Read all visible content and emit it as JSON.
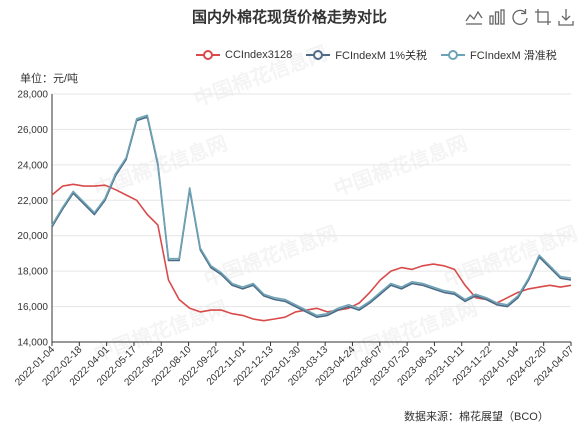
{
  "title": "国内外棉花现货价格走势对比",
  "unit_label": "单位：元/吨",
  "source_text": "数据来源：棉花展望（BCO）",
  "watermark_text": "中国棉花信息网",
  "toolbox": [
    {
      "name": "line-chart-icon"
    },
    {
      "name": "bar-chart-icon"
    },
    {
      "name": "refresh-icon"
    },
    {
      "name": "crop-icon"
    },
    {
      "name": "download-icon"
    }
  ],
  "colors": {
    "cc": "#d94b4b",
    "fc1": "#4b6a86",
    "fc2": "#6ea3b5"
  },
  "chart_data": {
    "type": "line",
    "ylim": [
      14000,
      28000
    ],
    "y_ticks": [
      "14,000",
      "16,000",
      "18,000",
      "20,000",
      "22,000",
      "24,000",
      "26,000",
      "28,000"
    ],
    "x_ticks": [
      "2022-01-04",
      "2022-02-18",
      "2022-04-01",
      "2022-05-17",
      "2022-06-29",
      "2022-08-10",
      "2022-09-22",
      "2022-11-01",
      "2022-12-13",
      "2023-01-30",
      "2023-03-13",
      "2023-04-24",
      "2023-06-07",
      "2023-07-20",
      "2023-08-31",
      "2023-10-11",
      "2023-11-22",
      "2024-01-04",
      "2024-02-20",
      "2024-04-07"
    ],
    "grid": true,
    "legend_position": "top-right",
    "series": [
      {
        "name": "CCIndex3128",
        "values": [
          22300,
          22800,
          22900,
          22800,
          22800,
          22850,
          22600,
          22300,
          22000,
          21200,
          20600,
          17500,
          16400,
          15900,
          15700,
          15800,
          15800,
          15600,
          15500,
          15300,
          15200,
          15300,
          15400,
          15700,
          15800,
          15900,
          15700,
          15800,
          15900,
          16200,
          16800,
          17500,
          18000,
          18200,
          18100,
          18300,
          18400,
          18300,
          18100,
          17200,
          16500,
          16400,
          16200,
          16500,
          16800,
          17000,
          17100,
          17200,
          17100,
          17200
        ]
      },
      {
        "name": "FCIndexM 1%关税",
        "values": [
          20500,
          21500,
          22400,
          21800,
          21200,
          22000,
          23400,
          24300,
          26500,
          26700,
          24000,
          18600,
          18600,
          22600,
          19200,
          18200,
          17800,
          17200,
          17000,
          17200,
          16600,
          16400,
          16300,
          16000,
          15700,
          15400,
          15500,
          15800,
          16000,
          15800,
          16200,
          16700,
          17200,
          17000,
          17300,
          17200,
          17000,
          16800,
          16700,
          16300,
          16600,
          16400,
          16100,
          16000,
          16500,
          17500,
          18800,
          18200,
          17600,
          17500
        ]
      },
      {
        "name": "FCIndexM 滑准税",
        "values": [
          20600,
          21600,
          22500,
          21900,
          21300,
          22100,
          23500,
          24400,
          26600,
          26800,
          24100,
          18700,
          18700,
          22700,
          19300,
          18300,
          17900,
          17300,
          17100,
          17300,
          16700,
          16500,
          16400,
          16100,
          15800,
          15500,
          15600,
          15900,
          16100,
          15900,
          16300,
          16800,
          17300,
          17100,
          17400,
          17300,
          17100,
          16900,
          16800,
          16400,
          16700,
          16500,
          16200,
          16100,
          16600,
          17600,
          18900,
          18300,
          17700,
          17600
        ]
      }
    ]
  }
}
